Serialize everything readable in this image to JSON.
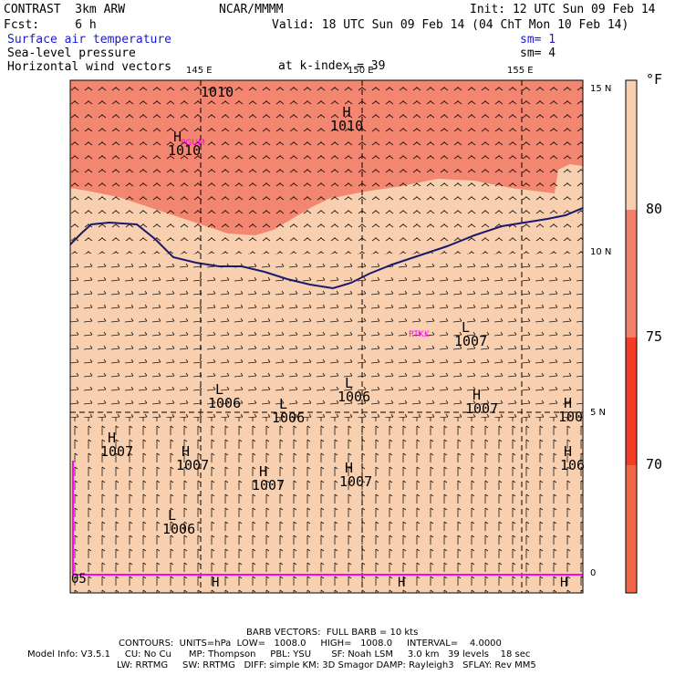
{
  "header": {
    "model": "CONTRAST  3km ARW",
    "org": "NCAR/MMMM",
    "init": "Init: 12 UTC Sun 09 Feb 14",
    "fcst": "Fcst:     6 h",
    "valid": "Valid: 18 UTC Sun 09 Feb 14 (04 ChT Mon 10 Feb 14)",
    "field1": "Surface air temperature",
    "field2": "Sea-level pressure",
    "field3": "Horizontal wind vectors",
    "sm1": "sm= 1",
    "sm2": "sm= 4",
    "level": "at k-index = 39"
  },
  "axes": {
    "lon_labels": [
      "145 E",
      "150 E",
      "155 E"
    ],
    "lat_labels": [
      "15 N",
      "10 N",
      "5 N",
      "0"
    ]
  },
  "colorbar": {
    "unit": "°F",
    "ticks": [
      "80",
      "75",
      "70"
    ],
    "colors": [
      "#f8d0b0",
      "#f0826a",
      "#f23c26",
      "#f06848"
    ]
  },
  "map_colors": {
    "warm": "#f28670",
    "cool": "#f8d0b0",
    "coast": "#1a1a6e",
    "stations": "#ff00ff"
  },
  "stations": [
    "PGUM",
    "PTKK"
  ],
  "pressure_centers": [
    {
      "type": "",
      "value": "1010"
    },
    {
      "type": "H",
      "value": "1010"
    },
    {
      "type": "H",
      "value": "1010"
    },
    {
      "type": "L",
      "value": "1007"
    },
    {
      "type": "L",
      "value": "1006"
    },
    {
      "type": "L",
      "value": "1006"
    },
    {
      "type": "L",
      "value": "1006"
    },
    {
      "type": "H",
      "value": "1007"
    },
    {
      "type": "H",
      "value": "1007"
    },
    {
      "type": "H",
      "value": "1007"
    },
    {
      "type": "H",
      "value": "1007"
    },
    {
      "type": "H",
      "value": "1007"
    },
    {
      "type": "H",
      "value": "100"
    },
    {
      "type": "L",
      "value": "1006"
    },
    {
      "type": "H",
      "value": "106"
    },
    {
      "type": "",
      "value": "05"
    },
    {
      "type": "H",
      "value": ""
    },
    {
      "type": "H",
      "value": ""
    },
    {
      "type": "H",
      "value": ""
    }
  ],
  "footer": {
    "barb": "BARB VECTORS:  FULL BARB = 10 kts",
    "contours": "CONTOURS:  UNITS=hPa  LOW=   1008.0     HIGH=   1008.0     INTERVAL=    4.0000",
    "model_info": "Model Info: V3.5.1     CU: No Cu      MP: Thompson     PBL: YSU       SF: Noah LSM     3.0 km   39 levels    18 sec",
    "physics": "LW: RRTMG     SW: RRTMG   DIFF: simple KM: 3D Smagor DAMP: Rayleigh3   SFLAY: Rev MM5"
  }
}
